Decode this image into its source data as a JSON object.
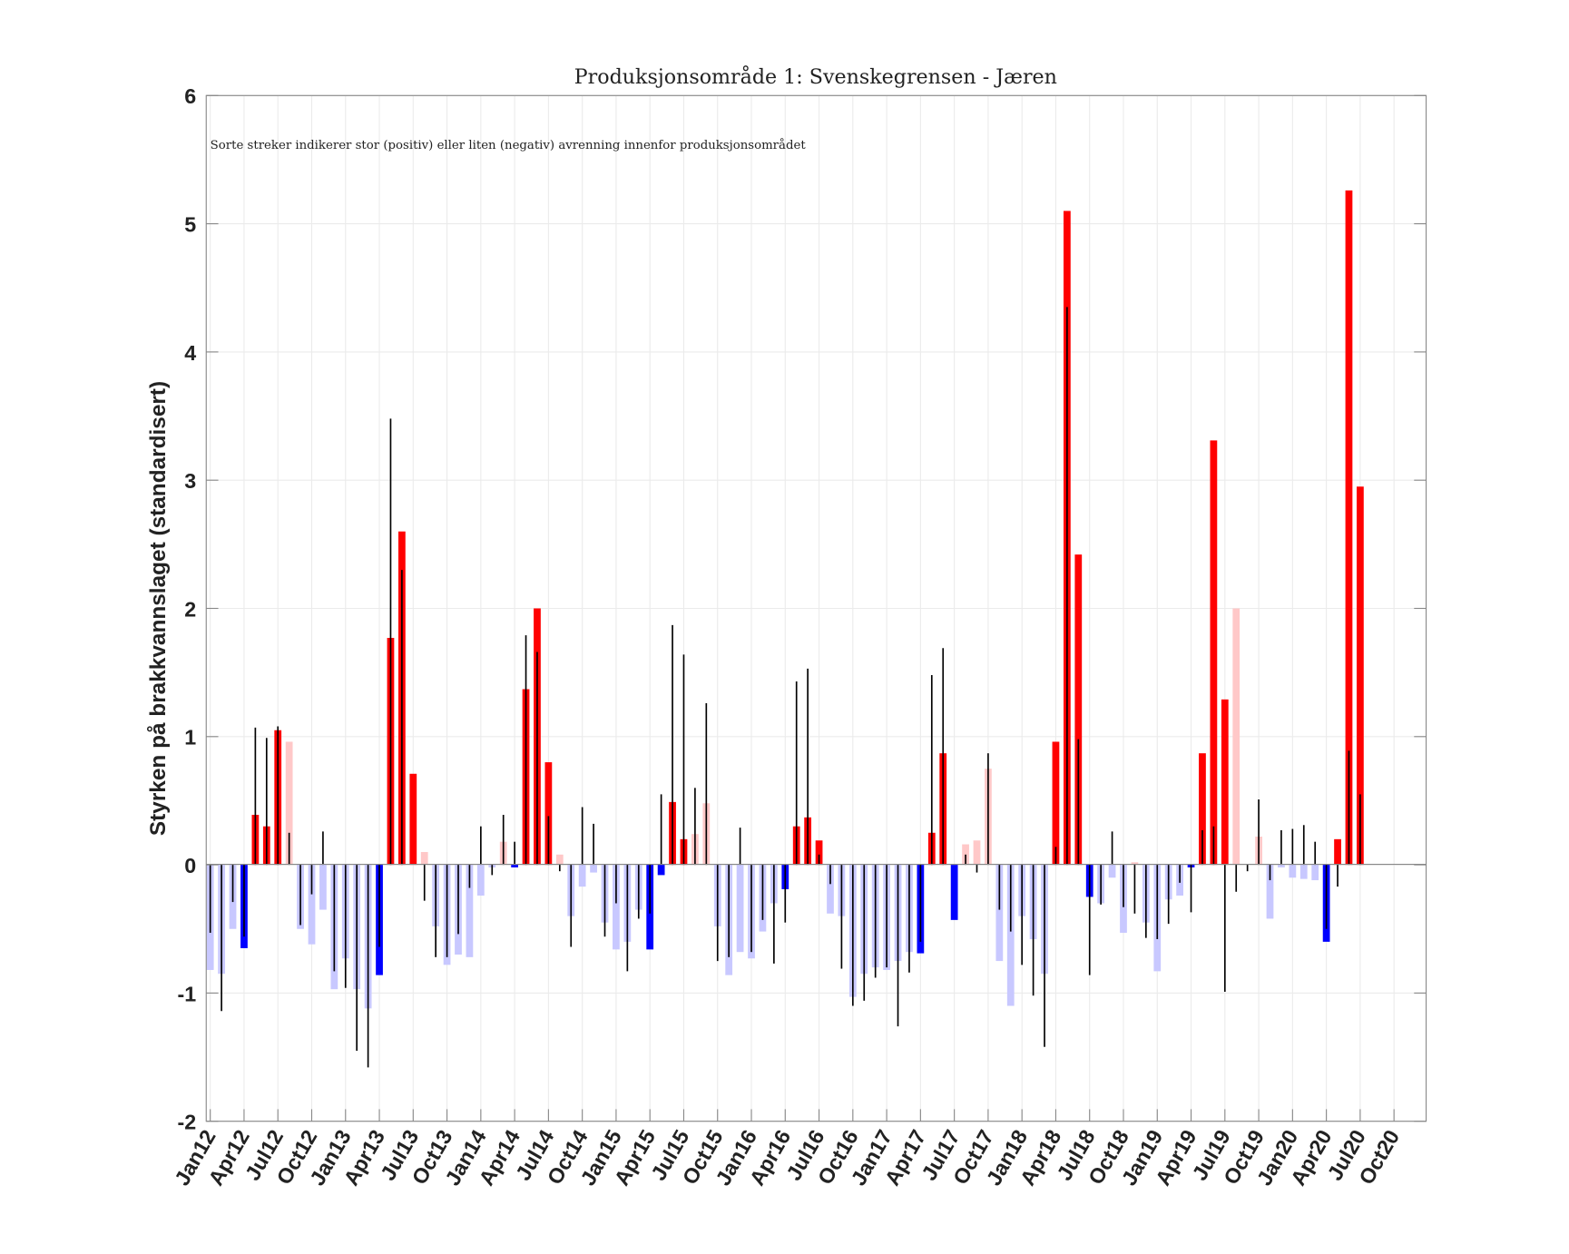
{
  "chart_data": {
    "type": "bar",
    "title": "Produksjonsområde 1: Svenskegrensen - Jæren",
    "annotation": "Sorte streker indikerer stor (positiv) eller liten (negativ) avrenning innenfor produksjonsområdet",
    "xlabel": "",
    "ylabel": "Styrken på brakkvannslaget (standardisert)",
    "ylim": [
      -2,
      6
    ],
    "yticks": [
      "-2",
      "-1",
      "0",
      "1",
      "2",
      "3",
      "4",
      "5",
      "6"
    ],
    "xticks": [
      "Jan12",
      "Apr12",
      "Jul12",
      "Oct12",
      "Jan13",
      "Apr13",
      "Jul13",
      "Oct13",
      "Jan14",
      "Apr14",
      "Jul14",
      "Oct14",
      "Jan15",
      "Apr15",
      "Jul15",
      "Oct15",
      "Jan16",
      "Apr16",
      "Jul16",
      "Oct16",
      "Jan17",
      "Apr17",
      "Jul17",
      "Oct17",
      "Jan18",
      "Apr18",
      "Jul18",
      "Oct18",
      "Jan19",
      "Apr19",
      "Jul19",
      "Oct19",
      "Jan20",
      "Apr20",
      "Jul20",
      "Oct20"
    ],
    "x_start": "Jan12",
    "x_step": "1 month",
    "grid": true,
    "color_map": {
      "R": "#ff0000",
      "P": "#ffc8c8",
      "B": "#0000ff",
      "L": "#c8c8ff",
      "line": "#000000"
    },
    "series": [
      {
        "name": "brakkvannslag",
        "values": [
          -0.82,
          -0.85,
          -0.5,
          -0.65,
          0.39,
          0.3,
          1.05,
          0.96,
          -0.5,
          -0.62,
          -0.35,
          -0.97,
          -0.73,
          -0.97,
          -1.12,
          -0.86,
          1.77,
          2.6,
          0.71,
          0.1,
          -0.48,
          -0.78,
          -0.7,
          -0.72,
          -0.24,
          -0.02,
          0.18,
          -0.02,
          1.37,
          2.0,
          0.8,
          0.08,
          -0.4,
          -0.17,
          -0.06,
          -0.45,
          -0.66,
          -0.6,
          -0.35,
          -0.66,
          -0.08,
          0.49,
          0.2,
          0.24,
          0.48,
          -0.48,
          -0.86,
          -0.68,
          -0.73,
          -0.52,
          -0.3,
          -0.19,
          0.3,
          0.37,
          0.19,
          -0.38,
          -0.4,
          -1.03,
          -0.85,
          -0.8,
          -0.82,
          -0.75,
          -0.68,
          -0.69,
          0.25,
          0.87,
          -0.43,
          0.16,
          0.19,
          0.75,
          -0.75,
          -1.1,
          -0.4,
          -0.58,
          -0.85,
          0.96,
          5.1,
          2.42,
          -0.25,
          -0.3,
          -0.1,
          -0.53,
          0.02,
          -0.45,
          -0.83,
          -0.27,
          -0.24,
          -0.02,
          0.87,
          3.31,
          1.29,
          2.0,
          0,
          0.22,
          -0.42,
          -0.02,
          -0.1,
          -0.11,
          -0.12,
          -0.6,
          0.2,
          5.26,
          2.95
        ],
        "colors": [
          "L",
          "L",
          "L",
          "B",
          "R",
          "R",
          "R",
          "P",
          "L",
          "L",
          "L",
          "L",
          "L",
          "L",
          "L",
          "B",
          "R",
          "R",
          "R",
          "P",
          "L",
          "L",
          "L",
          "L",
          "L",
          "L",
          "P",
          "B",
          "R",
          "R",
          "R",
          "P",
          "L",
          "L",
          "L",
          "L",
          "L",
          "L",
          "L",
          "B",
          "B",
          "R",
          "R",
          "P",
          "P",
          "L",
          "L",
          "L",
          "L",
          "L",
          "L",
          "B",
          "R",
          "R",
          "R",
          "L",
          "L",
          "L",
          "L",
          "L",
          "L",
          "L",
          "L",
          "B",
          "R",
          "R",
          "B",
          "P",
          "P",
          "P",
          "L",
          "L",
          "L",
          "L",
          "L",
          "R",
          "R",
          "R",
          "B",
          "L",
          "L",
          "L",
          "P",
          "L",
          "L",
          "L",
          "L",
          "B",
          "R",
          "R",
          "R",
          "P",
          "P",
          "P",
          "L",
          "L",
          "L",
          "L",
          "L",
          "B",
          "R",
          "R",
          "R"
        ]
      },
      {
        "name": "avrenning",
        "values": [
          -0.53,
          -1.14,
          -0.29,
          -0.56,
          1.07,
          0.99,
          1.08,
          0.25,
          -0.47,
          -0.23,
          0.26,
          -0.83,
          -0.96,
          -1.45,
          -1.58,
          -0.64,
          3.48,
          2.3,
          0,
          -0.28,
          -0.72,
          -0.72,
          -0.54,
          -0.18,
          0.3,
          -0.08,
          0.39,
          0.18,
          1.79,
          1.66,
          0.38,
          -0.05,
          -0.64,
          0.45,
          0.32,
          -0.56,
          -0.3,
          -0.83,
          -0.42,
          -0.38,
          0.55,
          1.87,
          1.64,
          0.6,
          1.26,
          -0.75,
          -0.72,
          0.29,
          -0.68,
          -0.43,
          -0.77,
          -0.45,
          1.43,
          1.53,
          0.08,
          -0.15,
          -0.81,
          -1.1,
          -1.06,
          -0.88,
          -0.8,
          -1.26,
          -0.84,
          -0.6,
          1.48,
          1.69,
          0,
          0.08,
          -0.06,
          0.87,
          -0.35,
          -0.52,
          -0.78,
          -1.02,
          -1.42,
          0.14,
          4.35,
          0.98,
          -0.86,
          -0.31,
          0.26,
          -0.33,
          -0.38,
          -0.57,
          -0.58,
          -0.46,
          -0.14,
          -0.37,
          0.27,
          0.3,
          -0.99,
          -0.21,
          -0.05,
          0.51,
          -0.12,
          0.27,
          0.28,
          0.31,
          0.18,
          -0.5,
          -0.17,
          0.89,
          0.55
        ]
      }
    ]
  }
}
